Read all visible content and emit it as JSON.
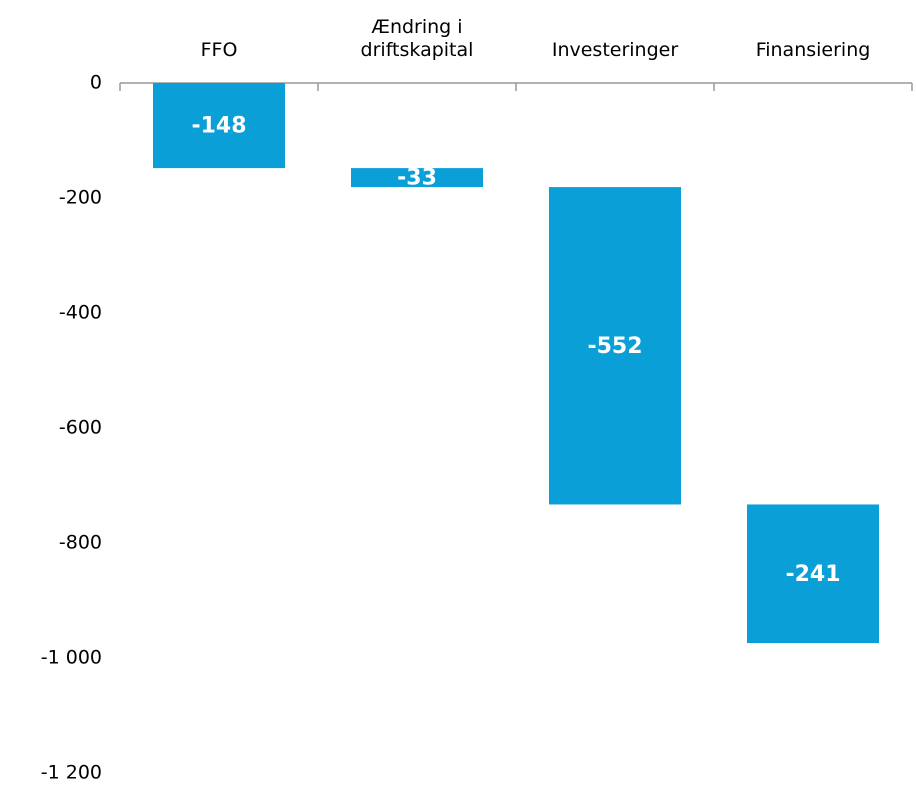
{
  "chart_data": {
    "type": "waterfall",
    "categories": [
      "FFO",
      "Ændring i driftskapital",
      "Investeringer",
      "Finansiering"
    ],
    "values": [
      -148,
      -33,
      -552,
      -241
    ],
    "color": "#0a9fd6",
    "ylim": [
      -1200,
      0
    ],
    "yticks": [
      0,
      -200,
      -400,
      -600,
      -800,
      {
        "value": -1000,
        "label": "-1 000"
      },
      {
        "value": -1200,
        "label": "-1 200"
      }
    ]
  }
}
